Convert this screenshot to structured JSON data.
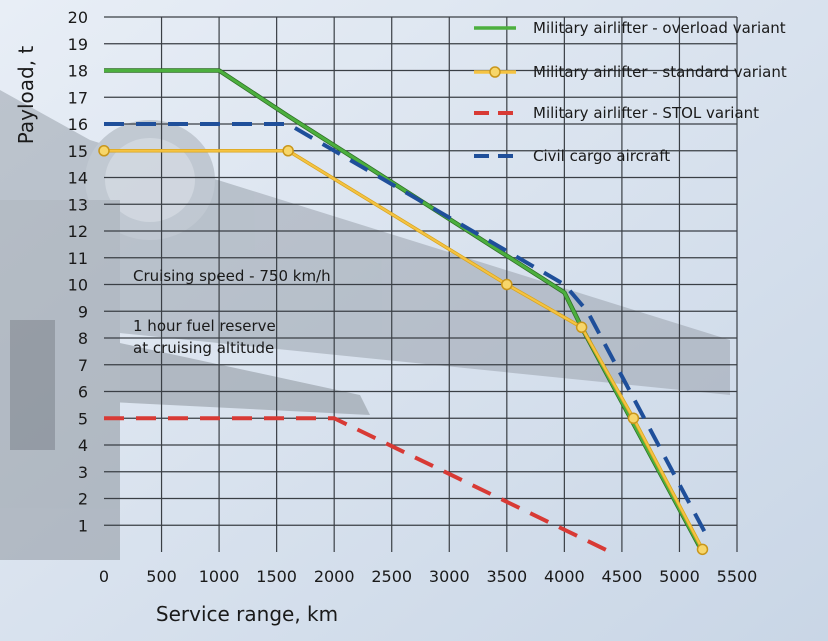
{
  "chart_data": {
    "type": "line",
    "xlabel": "Service range, km",
    "ylabel": "Payload, t",
    "xlim": [
      0,
      5500
    ],
    "ylim": [
      0,
      20
    ],
    "xticks": [
      0,
      500,
      1000,
      1500,
      2000,
      2500,
      3000,
      3500,
      4000,
      4500,
      5000,
      5500
    ],
    "yticks": [
      1,
      2,
      3,
      4,
      5,
      6,
      7,
      8,
      9,
      10,
      11,
      12,
      13,
      14,
      15,
      16,
      17,
      18,
      19,
      20
    ],
    "grid": true,
    "legend_position": "top-right",
    "annotations": [
      "Cruising speed - 750 km/h",
      "1 hour fuel reserve",
      "at cruising altitude"
    ],
    "series": [
      {
        "name": "Military airlifter - overload variant",
        "color": "#4caf3e",
        "style": "solid",
        "markers": false,
        "x": [
          0,
          1000,
          1600,
          4000,
          4150,
          5200
        ],
        "y": [
          18,
          18,
          16.3,
          9.7,
          8.4,
          0
        ]
      },
      {
        "name": "Military airlifter - standard variant",
        "color": "#f5c342",
        "style": "solid",
        "markers": true,
        "x": [
          0,
          1600,
          3500,
          4150,
          4600,
          5200
        ],
        "y": [
          15,
          15,
          10,
          8.4,
          5,
          0.1
        ],
        "marker_x": [
          0,
          1600,
          3500,
          4150,
          4600,
          5200
        ]
      },
      {
        "name": "Military airlifter - STOL variant",
        "color": "#d83a35",
        "style": "dashed",
        "markers": false,
        "x": [
          0,
          2000,
          4400
        ],
        "y": [
          5,
          5,
          0
        ]
      },
      {
        "name": "Civil cargo aircraft",
        "color": "#1f4f9a",
        "style": "dashed",
        "markers": false,
        "x": [
          0,
          1600,
          4000,
          4200,
          5250
        ],
        "y": [
          16,
          16,
          10,
          9,
          0.5
        ]
      }
    ]
  }
}
